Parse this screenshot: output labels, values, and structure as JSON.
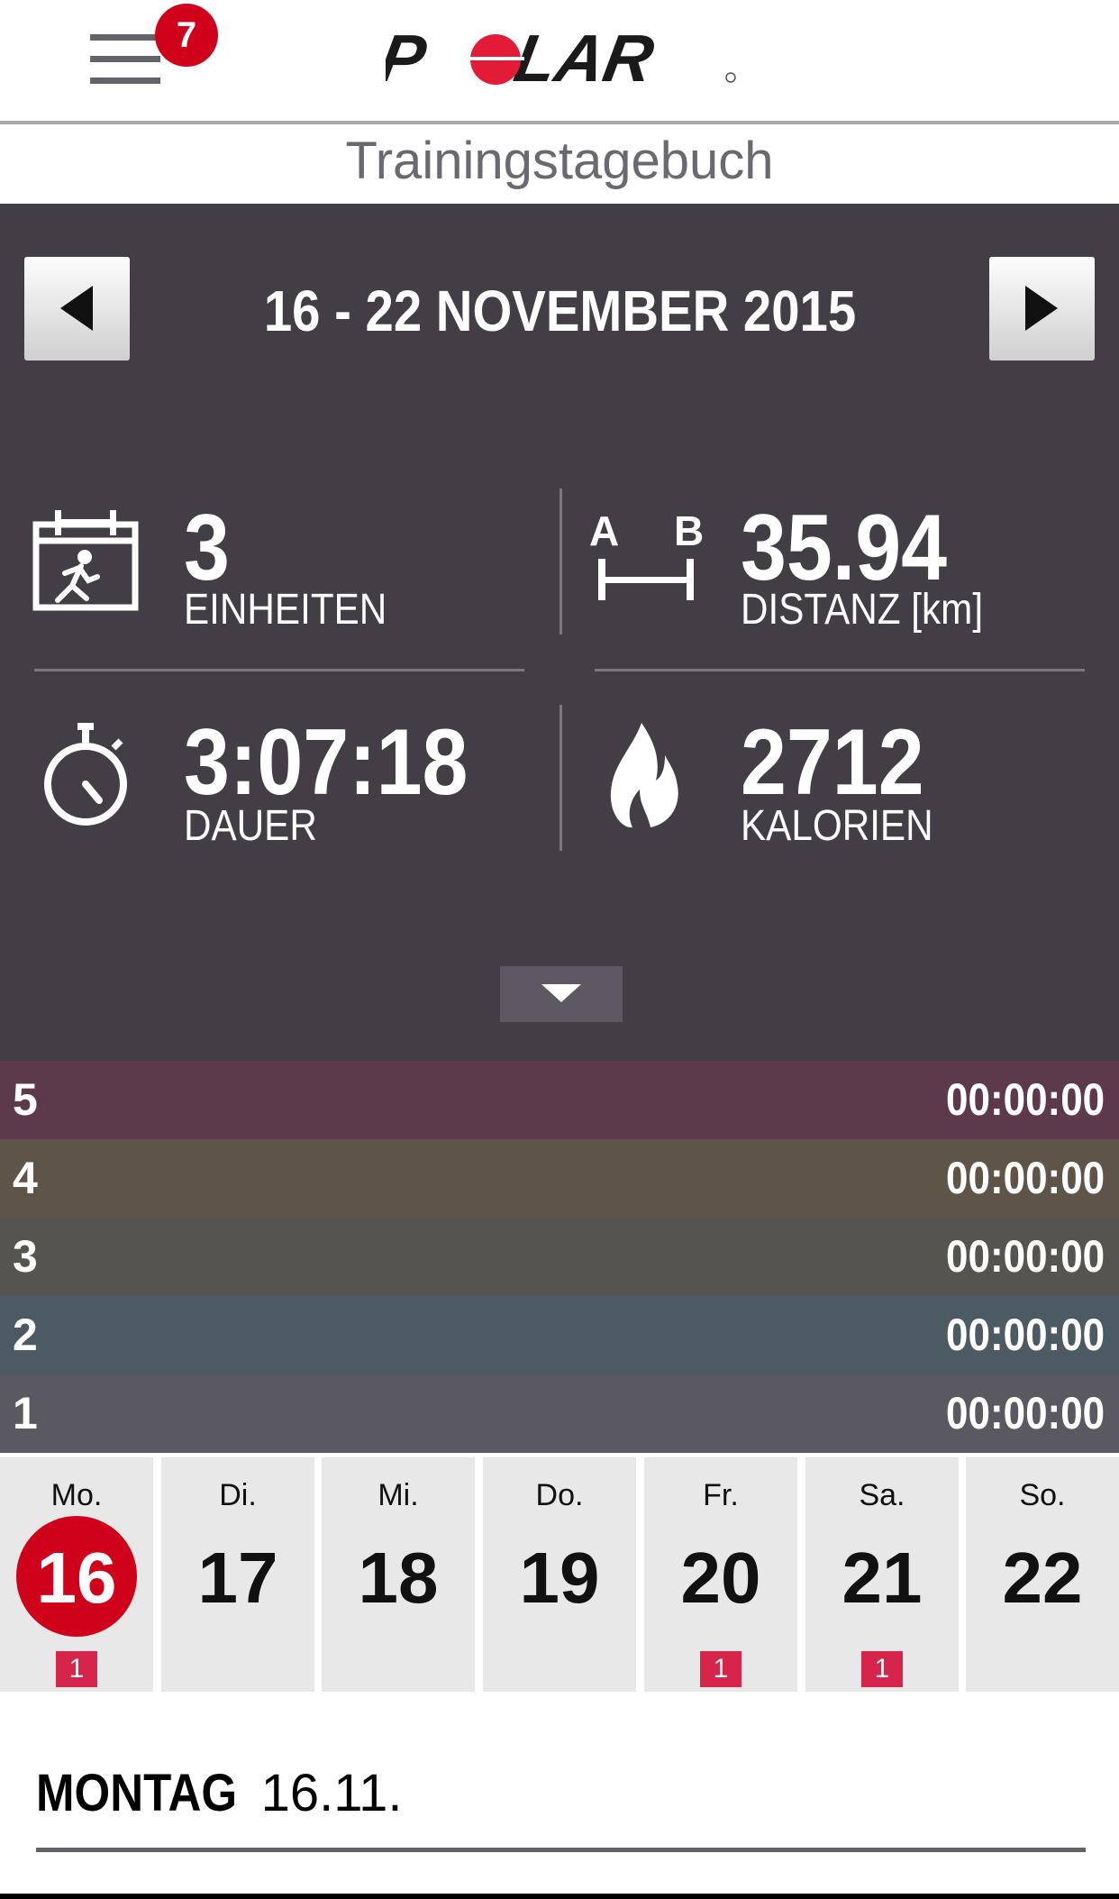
{
  "header": {
    "notification_count": "7",
    "logo_text": "POLAR",
    "page_title": "Trainingstagebuch"
  },
  "week": {
    "range": "16 - 22 NOVEMBER 2015"
  },
  "stats": {
    "sessions": {
      "value": "3",
      "label": "EINHEITEN"
    },
    "distance": {
      "value": "35.94",
      "label": "DISTANZ [km]",
      "icon_a": "A",
      "icon_b": "B"
    },
    "duration": {
      "value": "3:07:18",
      "label": "DAUER"
    },
    "calories": {
      "value": "2712",
      "label": "KALORIEN"
    }
  },
  "zones": [
    {
      "zone": "5",
      "time": "00:00:00",
      "color": "#5c3a4c"
    },
    {
      "zone": "4",
      "time": "00:00:00",
      "color": "#5e5447"
    },
    {
      "zone": "3",
      "time": "00:00:00",
      "color": "#55544f"
    },
    {
      "zone": "2",
      "time": "00:00:00",
      "color": "#4c5a63"
    },
    {
      "zone": "1",
      "time": "00:00:00",
      "color": "#5a5860"
    }
  ],
  "days": [
    {
      "name": "Mo.",
      "date": "16",
      "count": "1",
      "selected": true
    },
    {
      "name": "Di.",
      "date": "17"
    },
    {
      "name": "Mi.",
      "date": "18"
    },
    {
      "name": "Do.",
      "date": "19"
    },
    {
      "name": "Fr.",
      "date": "20",
      "count": "1"
    },
    {
      "name": "Sa.",
      "date": "21",
      "count": "1"
    },
    {
      "name": "So.",
      "date": "22"
    }
  ],
  "day_detail": {
    "weekday": "MONTAG",
    "date": "16.11."
  },
  "colors": {
    "accent": "#d0021b",
    "panel": "#433e45"
  }
}
